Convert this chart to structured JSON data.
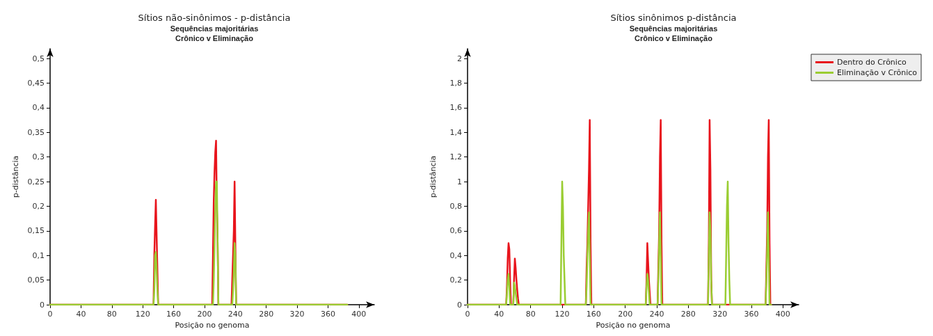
{
  "chart_data": [
    {
      "type": "line",
      "title": "Sítios não-sinônimos - p-distância",
      "subtitle": "Sequências majoritárias\nCrônico v Eliminação",
      "xlabel": "Posição no genoma",
      "ylabel": "p-distância",
      "xlim": [
        0,
        420
      ],
      "xticks": [
        0,
        40,
        80,
        120,
        160,
        200,
        240,
        280,
        320,
        360,
        400
      ],
      "ylim": [
        0,
        0.52
      ],
      "yticks": [
        0,
        {
          "value": 0.05,
          "label": "0,05"
        },
        {
          "value": 0.1,
          "label": "0,1"
        },
        {
          "value": 0.15,
          "label": "0,15"
        },
        {
          "value": 0.2,
          "label": "0,2"
        },
        {
          "value": 0.25,
          "label": "0,25"
        },
        {
          "value": 0.3,
          "label": "0,3"
        },
        {
          "value": 0.35,
          "label": "0,35"
        },
        {
          "value": 0.4,
          "label": "0,4"
        },
        {
          "value": 0.45,
          "label": "0,45"
        },
        {
          "value": 0.5,
          "label": "0,5"
        }
      ],
      "grid": false,
      "legend": false,
      "marker": "none",
      "line_style": "solid",
      "series": [
        {
          "color": "#e8141c",
          "x": [
            0,
            134,
            135,
            136,
            137,
            138,
            139,
            140,
            210,
            211,
            212,
            213,
            214,
            215,
            216,
            217,
            218,
            235,
            236,
            237,
            238,
            239,
            240,
            241,
            385
          ],
          "values": [
            0,
            0,
            0.1,
            0.16,
            0.213,
            0.14,
            0.07,
            0,
            0,
            0.1,
            0.21,
            0.27,
            0.31,
            0.333,
            0.2,
            0.13,
            0,
            0,
            0.05,
            0.1,
            0.15,
            0.25,
            0.12,
            0,
            0
          ]
        },
        {
          "color": "#9acd32",
          "x": [
            0,
            134,
            135,
            136,
            137,
            138,
            139,
            140,
            210,
            211,
            212,
            213,
            214,
            215,
            216,
            217,
            218,
            236,
            237,
            238,
            239,
            240,
            241,
            385
          ],
          "values": [
            0,
            0,
            0.03,
            0.1,
            0.107,
            0.07,
            0.03,
            0,
            0,
            0,
            0.05,
            0.12,
            0.2,
            0.25,
            0.25,
            0.13,
            0,
            0,
            0.03,
            0.07,
            0.125,
            0.1,
            0,
            0
          ]
        }
      ]
    },
    {
      "type": "line",
      "title": "Sítios sinônimos p-distância",
      "subtitle": "Sequências majoritárias\nCrônico v Eliminação",
      "xlabel": "Posição no genoma",
      "ylabel": "p-distância",
      "xlim": [
        0,
        420
      ],
      "xticks": [
        0,
        40,
        80,
        120,
        160,
        200,
        240,
        280,
        320,
        360,
        400
      ],
      "ylim": [
        0,
        2.08
      ],
      "yticks": [
        0,
        {
          "value": 0.2,
          "label": "0,2"
        },
        {
          "value": 0.4,
          "label": "0,4"
        },
        {
          "value": 0.6,
          "label": "0,6"
        },
        {
          "value": 0.8,
          "label": "0,8"
        },
        1,
        {
          "value": 1.2,
          "label": "1,2"
        },
        {
          "value": 1.4,
          "label": "1,4"
        },
        {
          "value": 1.6,
          "label": "1,6"
        },
        {
          "value": 1.8,
          "label": "1,8"
        },
        2
      ],
      "grid": false,
      "legend": "top right",
      "marker": "none",
      "line_style": "solid",
      "series": [
        {
          "name": "Dentro do Crônico",
          "color": "#e8141c",
          "x": [
            0,
            49,
            50,
            51,
            52,
            53,
            54,
            55,
            58,
            59,
            60,
            61,
            62,
            63,
            64,
            65,
            150,
            151,
            152,
            153,
            154,
            155,
            156,
            157,
            226,
            227,
            228,
            229,
            230,
            231,
            232,
            241,
            242,
            243,
            244,
            245,
            246,
            247,
            305,
            306,
            307,
            308,
            309,
            310,
            378,
            379,
            380,
            381,
            382,
            383,
            384,
            385
          ],
          "values": [
            0,
            0,
            0.15,
            0.38,
            0.5,
            0.45,
            0.2,
            0,
            0,
            0.2,
            0.375,
            0.3,
            0.2,
            0.12,
            0.05,
            0,
            0,
            0.3,
            0.5,
            0.8,
            1.1,
            1.5,
            0.5,
            0,
            0,
            0.2,
            0.5,
            0.35,
            0.2,
            0.1,
            0,
            0,
            0.3,
            0.6,
            1.2,
            1.5,
            0.5,
            0,
            0,
            0.5,
            1.5,
            1.1,
            0.2,
            0,
            0,
            0.3,
            0.6,
            1.2,
            1.5,
            0.5,
            0,
            0
          ]
        },
        {
          "name": "Eliminação v Crônico",
          "color": "#9acd32",
          "x": [
            0,
            49,
            50,
            51,
            52,
            53,
            54,
            58,
            59,
            60,
            61,
            62,
            63,
            118,
            119,
            120,
            121,
            122,
            123,
            124,
            150,
            151,
            152,
            153,
            154,
            155,
            156,
            226,
            227,
            228,
            229,
            230,
            231,
            241,
            242,
            243,
            244,
            245,
            246,
            305,
            306,
            307,
            308,
            309,
            310,
            327,
            328,
            329,
            330,
            331,
            332,
            333,
            378,
            379,
            380,
            381,
            382,
            383,
            385
          ],
          "values": [
            0,
            0,
            0.1,
            0.2,
            0.25,
            0.15,
            0,
            0,
            0.18,
            0.15,
            0.1,
            0.05,
            0,
            0,
            0.5,
            1,
            0.8,
            0.4,
            0.2,
            0,
            0,
            0.15,
            0.4,
            0.6,
            0.75,
            0.4,
            0,
            0,
            0.15,
            0.25,
            0.2,
            0.1,
            0,
            0,
            0.2,
            0.5,
            0.75,
            0.4,
            0,
            0,
            0.4,
            0.75,
            0.6,
            0.2,
            0,
            0,
            0.4,
            0.8,
            1,
            0.5,
            0.2,
            0,
            0,
            0.2,
            0.45,
            0.75,
            0.4,
            0,
            0
          ]
        }
      ]
    }
  ]
}
